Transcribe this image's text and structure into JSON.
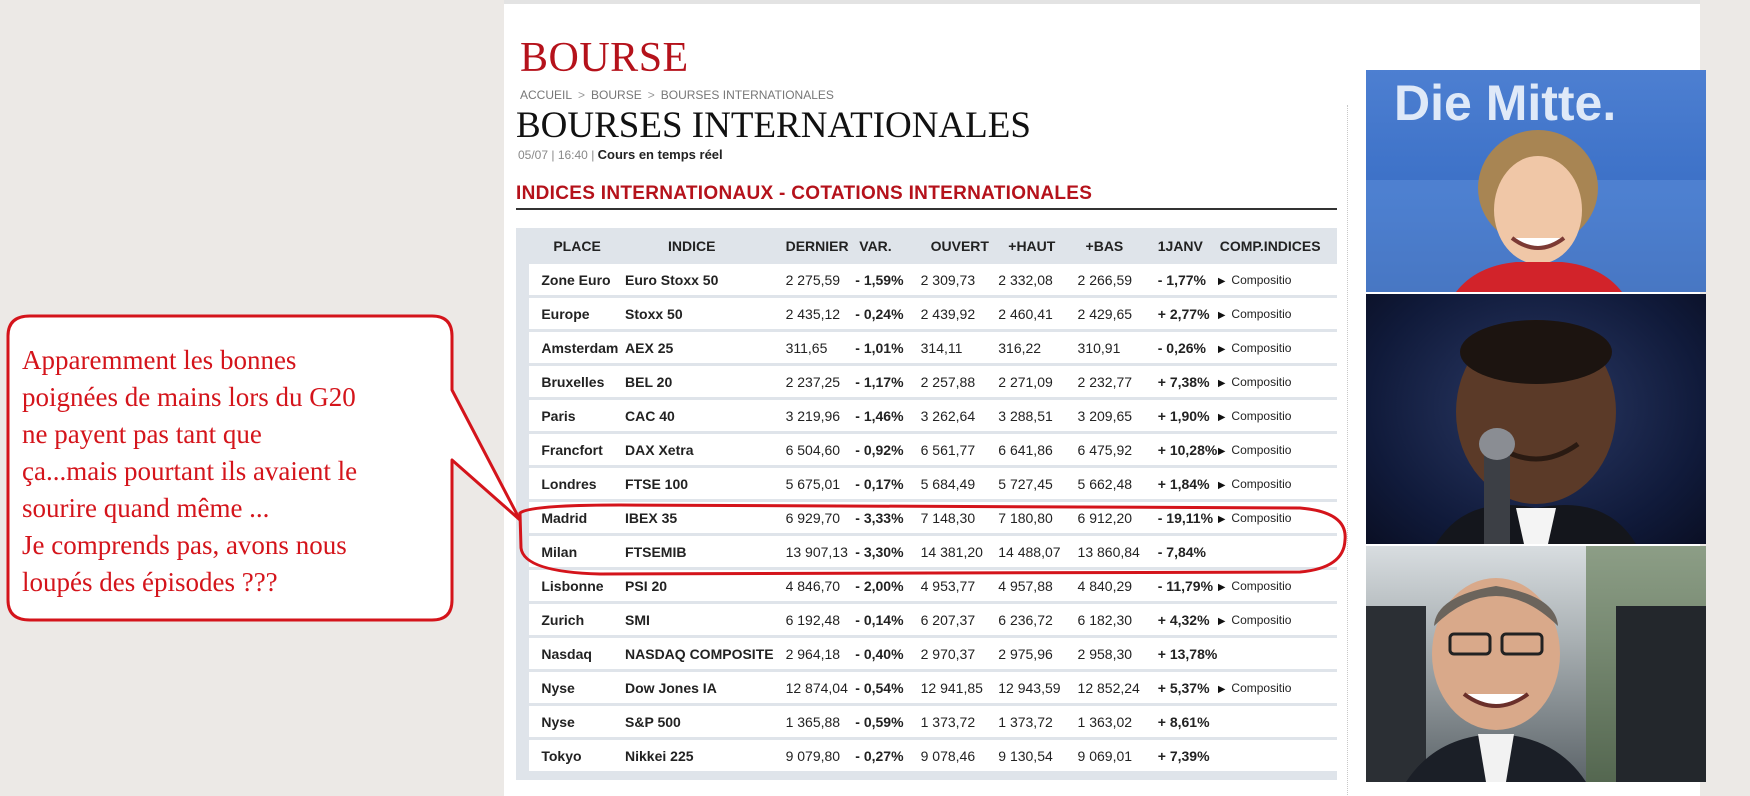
{
  "header": {
    "section": "BOURSE",
    "breadcrumb": [
      "ACCUEIL",
      "BOURSE",
      "BOURSES INTERNATIONALES"
    ],
    "title": "BOURSES INTERNATIONALES",
    "date": "05/07",
    "time": "16:40",
    "realtime": "Cours en temps réel"
  },
  "section_title": "INDICES INTERNATIONAUX - COTATIONS INTERNATIONALES",
  "table": {
    "headers": [
      "PLACE",
      "INDICE",
      "DERNIER",
      "VAR.",
      "OUVERT",
      "+HAUT",
      "+BAS",
      "1JANV",
      "COMP.INDICES"
    ],
    "rows": [
      {
        "place": "Zone Euro",
        "indice": "Euro Stoxx 50",
        "dernier": "2 275,59",
        "var": "- 1,59%",
        "ouvert": "2 309,73",
        "haut": "2 332,08",
        "bas": "2 266,59",
        "janv": "- 1,77%",
        "comp": "Compositio"
      },
      {
        "place": "Europe",
        "indice": "Stoxx 50",
        "dernier": "2 435,12",
        "var": "- 0,24%",
        "ouvert": "2 439,92",
        "haut": "2 460,41",
        "bas": "2 429,65",
        "janv": "+ 2,77%",
        "comp": "Compositio"
      },
      {
        "place": "Amsterdam",
        "indice": "AEX 25",
        "dernier": "311,65",
        "var": "- 1,01%",
        "ouvert": "314,11",
        "haut": "316,22",
        "bas": "310,91",
        "janv": "- 0,26%",
        "comp": "Compositio"
      },
      {
        "place": "Bruxelles",
        "indice": "BEL 20",
        "dernier": "2 237,25",
        "var": "- 1,17%",
        "ouvert": "2 257,88",
        "haut": "2 271,09",
        "bas": "2 232,77",
        "janv": "+ 7,38%",
        "comp": "Compositio"
      },
      {
        "place": "Paris",
        "indice": "CAC 40",
        "dernier": "3 219,96",
        "var": "- 1,46%",
        "ouvert": "3 262,64",
        "haut": "3 288,51",
        "bas": "3 209,65",
        "janv": "+ 1,90%",
        "comp": "Compositio"
      },
      {
        "place": "Francfort",
        "indice": "DAX Xetra",
        "dernier": "6 504,60",
        "var": "- 0,92%",
        "ouvert": "6 561,77",
        "haut": "6 641,86",
        "bas": "6 475,92",
        "janv": "+ 10,28%",
        "comp": "Compositio"
      },
      {
        "place": "Londres",
        "indice": "FTSE 100",
        "dernier": "5 675,01",
        "var": "- 0,17%",
        "ouvert": "5 684,49",
        "haut": "5 727,45",
        "bas": "5 662,48",
        "janv": "+ 1,84%",
        "comp": "Compositio"
      },
      {
        "place": "Madrid",
        "indice": "IBEX 35",
        "dernier": "6 929,70",
        "var": "- 3,33%",
        "ouvert": "7 148,30",
        "haut": "7 180,80",
        "bas": "6 912,20",
        "janv": "- 19,11%",
        "comp": "Compositio"
      },
      {
        "place": "Milan",
        "indice": "FTSEMIB",
        "dernier": "13 907,13",
        "var": "- 3,30%",
        "ouvert": "14 381,20",
        "haut": "14 488,07",
        "bas": "13 860,84",
        "janv": "- 7,84%",
        "comp": ""
      },
      {
        "place": "Lisbonne",
        "indice": "PSI 20",
        "dernier": "4 846,70",
        "var": "- 2,00%",
        "ouvert": "4 953,77",
        "haut": "4 957,88",
        "bas": "4 840,29",
        "janv": "- 11,79%",
        "comp": "Compositio"
      },
      {
        "place": "Zurich",
        "indice": "SMI",
        "dernier": "6 192,48",
        "var": "- 0,14%",
        "ouvert": "6 207,37",
        "haut": "6 236,72",
        "bas": "6 182,30",
        "janv": "+ 4,32%",
        "comp": "Compositio"
      },
      {
        "place": "Nasdaq",
        "indice": "NASDAQ COMPOSITE",
        "dernier": "2 964,18",
        "var": "- 0,40%",
        "ouvert": "2 970,37",
        "haut": "2 975,96",
        "bas": "2 958,30",
        "janv": "+ 13,78%",
        "comp": ""
      },
      {
        "place": "Nyse",
        "indice": "Dow Jones IA",
        "dernier": "12 874,04",
        "var": "- 0,54%",
        "ouvert": "12 941,85",
        "haut": "12 943,59",
        "bas": "12 852,24",
        "janv": "+ 5,37%",
        "comp": "Compositio"
      },
      {
        "place": "Nyse",
        "indice": "S&P 500",
        "dernier": "1 365,88",
        "var": "- 0,59%",
        "ouvert": "1 373,72",
        "haut": "1 373,72",
        "bas": "1 363,02",
        "janv": "+ 8,61%",
        "comp": ""
      },
      {
        "place": "Tokyo",
        "indice": "Nikkei 225",
        "dernier": "9 079,80",
        "var": "- 0,27%",
        "ouvert": "9 078,46",
        "haut": "9 130,54",
        "bas": "9 069,01",
        "janv": "+ 7,39%",
        "comp": ""
      }
    ]
  },
  "annotation": {
    "lines": [
      "Apparemment les bonnes",
      "poignées de mains lors du G20",
      "ne payent pas tant que",
      "ça...mais pourtant ils avaient le",
      "sourire quand même ...",
      "Je comprends pas, avons nous",
      "loupés des épisodes ???"
    ],
    "color": "#d4141b"
  },
  "photos": {
    "banner_text": "Die Mitte."
  },
  "colors": {
    "brand_red": "#b5121b",
    "negative": "#d4141b",
    "positive": "#3aa536",
    "table_bg": "#dfe4ea"
  }
}
